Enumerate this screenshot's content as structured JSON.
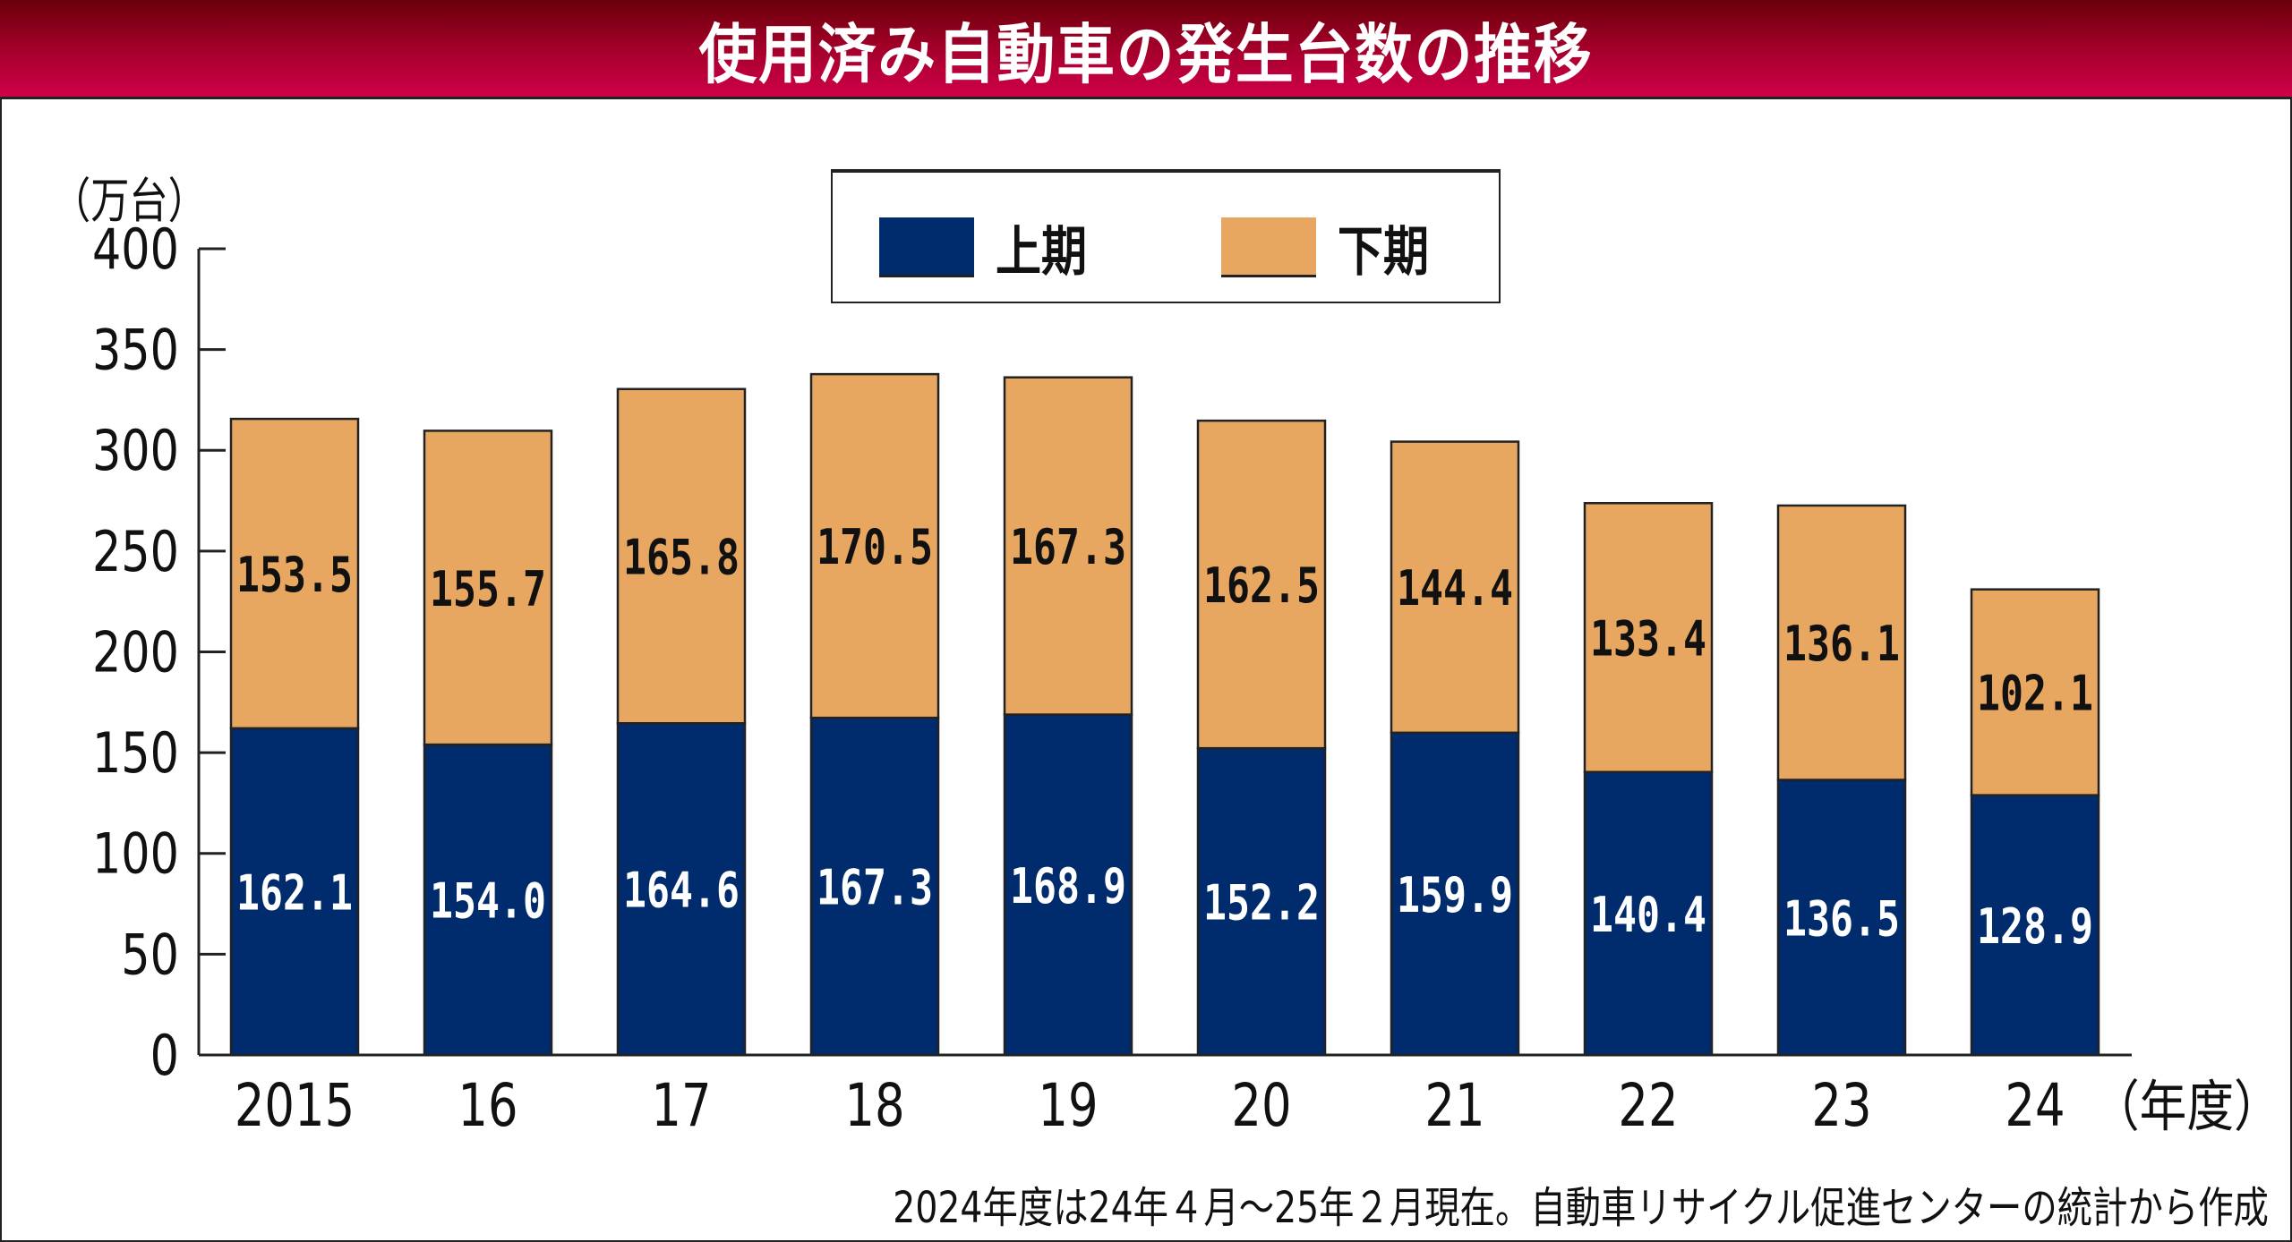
{
  "chart_data": {
    "type": "bar",
    "stacked": true,
    "title": "使用済み自動車の発生台数の推移",
    "ylabel": "（万台）",
    "xlabel": "（年度）",
    "ylim": [
      0,
      400
    ],
    "yticks": [
      0,
      50,
      100,
      150,
      200,
      250,
      300,
      350,
      400
    ],
    "categories": [
      "2015",
      "16",
      "17",
      "18",
      "19",
      "20",
      "21",
      "22",
      "23",
      "24"
    ],
    "series": [
      {
        "name": "上期",
        "color": "#002b6c",
        "values": [
          162.1,
          154.0,
          164.6,
          167.3,
          168.9,
          152.2,
          159.9,
          140.4,
          136.5,
          128.9
        ]
      },
      {
        "name": "下期",
        "color": "#e8a761",
        "values": [
          153.5,
          155.7,
          165.8,
          170.5,
          167.3,
          162.5,
          144.4,
          133.4,
          136.1,
          102.1
        ]
      }
    ],
    "legend_position": "top-center",
    "note": "2024年度は24年４月～25年２月現在。自動車リサイクル促進センターの統計から作成"
  }
}
